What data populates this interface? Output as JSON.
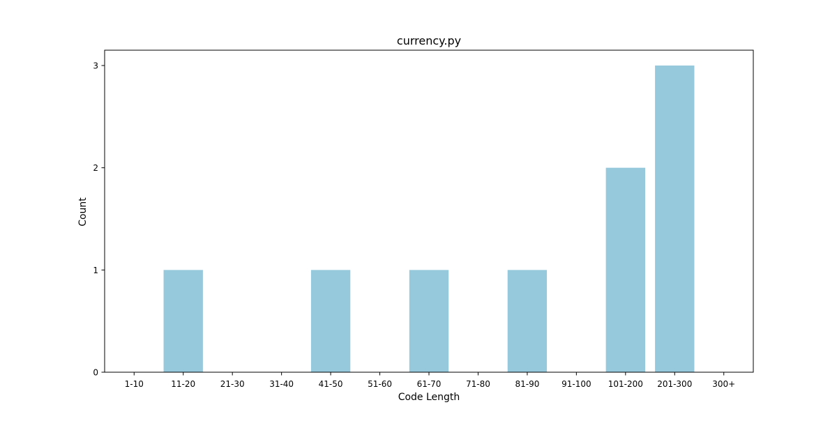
{
  "chart_data": {
    "type": "bar",
    "title": "currency.py",
    "xlabel": "Code Length",
    "ylabel": "Count",
    "categories": [
      "1-10",
      "11-20",
      "21-30",
      "31-40",
      "41-50",
      "51-60",
      "61-70",
      "71-80",
      "81-90",
      "91-100",
      "101-200",
      "201-300",
      "300+"
    ],
    "values": [
      0,
      1,
      0,
      0,
      1,
      0,
      1,
      0,
      1,
      0,
      2,
      3,
      0
    ],
    "ylim": [
      0,
      3.15
    ],
    "yticks": [
      0,
      1,
      2,
      3
    ],
    "grid": false,
    "bar_color": "#96c9dc"
  }
}
